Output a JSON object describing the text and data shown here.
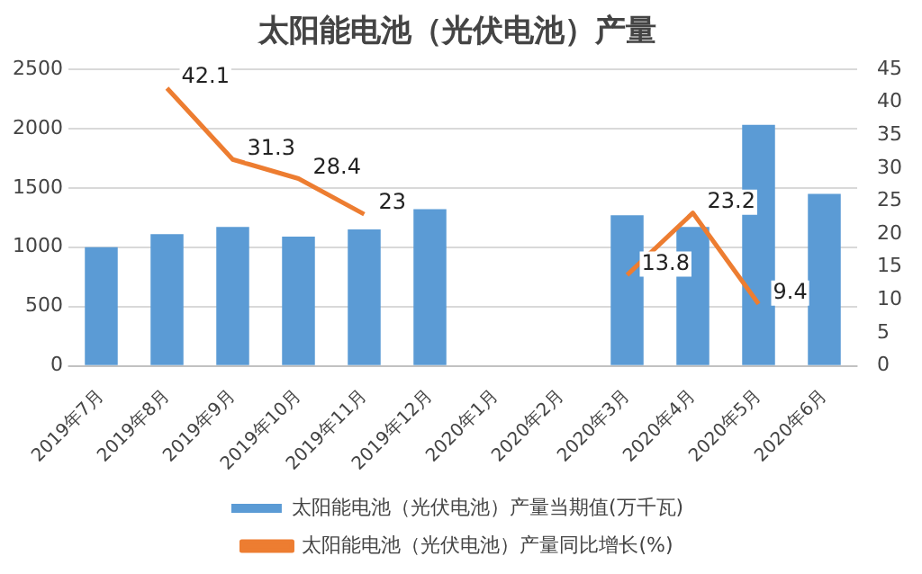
{
  "chart_data": {
    "type": "bar",
    "title": "太阳能电池（光伏电池）产量",
    "categories": [
      "2019年7月",
      "2019年8月",
      "2019年9月",
      "2019年10月",
      "2019年11月",
      "2019年12月",
      "2020年1月",
      "2020年2月",
      "2020年3月",
      "2020年4月",
      "2020年5月",
      "2020年6月"
    ],
    "series": [
      {
        "name": "太阳能电池（光伏电池）产量当期值(万千瓦)",
        "color": "#5b9bd5",
        "values": [
          1000,
          1110,
          1170,
          1090,
          1150,
          1320,
          null,
          null,
          1270,
          1170,
          2030,
          1450
        ]
      },
      {
        "name": "太阳能电池（光伏电池）产量同比增长(%)",
        "type": "line",
        "axis": "y2",
        "color": "#ed7d31",
        "values": [
          null,
          42.1,
          31.3,
          28.4,
          23,
          null,
          null,
          null,
          13.8,
          23.2,
          9.4,
          null
        ],
        "value_labels": [
          null,
          "42.1",
          "31.3",
          "28.4",
          "23",
          null,
          null,
          null,
          "13.8",
          "23.2",
          "9.4",
          null
        ]
      }
    ],
    "ylim": [
      0,
      2500
    ],
    "yticks": [
      0,
      500,
      1000,
      1500,
      2000,
      2500
    ],
    "y2lim": [
      0,
      45
    ],
    "y2ticks": [
      0,
      5,
      10,
      15,
      20,
      25,
      30,
      35,
      40,
      45
    ],
    "grid": "y",
    "legend": "bottom",
    "marker": "none"
  }
}
